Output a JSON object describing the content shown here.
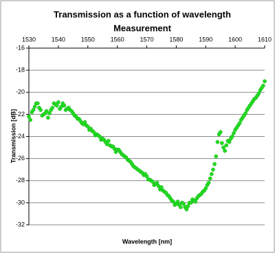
{
  "chart_data": {
    "type": "scatter",
    "title": "Transmission as a function of wavelength",
    "subtitle": "Measurement",
    "x_label": "Wavelength [nm]",
    "y_label": "Transmission [dB]",
    "color": "#22dd22",
    "grid": true,
    "xlim": [
      1530,
      1610
    ],
    "ylim": [
      -32,
      -16
    ],
    "xticks": [
      1530,
      1540,
      1550,
      1560,
      1570,
      1580,
      1590,
      1600,
      1610
    ],
    "yticks": [
      -32,
      -30,
      -28,
      -26,
      -24,
      -22,
      -20,
      -18,
      -16
    ],
    "x": [
      1530,
      1530.5,
      1531,
      1531.5,
      1532,
      1532.5,
      1533,
      1533.5,
      1534,
      1534.5,
      1535,
      1535.5,
      1536,
      1536.5,
      1537,
      1537.5,
      1538,
      1538.5,
      1539,
      1539.5,
      1540,
      1540.5,
      1541,
      1541.5,
      1542,
      1542.5,
      1543,
      1543.5,
      1544,
      1544.5,
      1545,
      1545.5,
      1546,
      1546.5,
      1547,
      1547.5,
      1548,
      1548.5,
      1549,
      1549.5,
      1550,
      1550.5,
      1551,
      1551.5,
      1552,
      1552.5,
      1553,
      1553.5,
      1554,
      1554.5,
      1555,
      1555.5,
      1556,
      1556.5,
      1557,
      1557.5,
      1558,
      1558.5,
      1559,
      1559.5,
      1560,
      1560.5,
      1561,
      1561.5,
      1562,
      1562.5,
      1563,
      1563.5,
      1564,
      1564.5,
      1565,
      1565.5,
      1566,
      1566.5,
      1567,
      1567.5,
      1568,
      1568.5,
      1569,
      1569.5,
      1570,
      1570.5,
      1571,
      1571.5,
      1572,
      1572.5,
      1573,
      1573.5,
      1574,
      1574.5,
      1575,
      1575.5,
      1576,
      1576.5,
      1577,
      1577.5,
      1578,
      1578.5,
      1579,
      1579.5,
      1580,
      1580.5,
      1581,
      1581.5,
      1582,
      1582.5,
      1583,
      1583.5,
      1584,
      1584.5,
      1585,
      1585.5,
      1586,
      1586.5,
      1587,
      1587.5,
      1588,
      1588.5,
      1589,
      1589.5,
      1590,
      1590.5,
      1591,
      1591.5,
      1592,
      1592.5,
      1593,
      1593.5,
      1594,
      1594.5,
      1595,
      1595.5,
      1596,
      1596.5,
      1597,
      1597.5,
      1598,
      1598.5,
      1599,
      1599.5,
      1600,
      1600.5,
      1601,
      1601.5,
      1602,
      1602.5,
      1603,
      1603.5,
      1604,
      1604.5,
      1605,
      1605.5,
      1606,
      1606.5,
      1607,
      1607.5,
      1608,
      1608.5,
      1609,
      1609.5,
      1610
    ],
    "values": [
      -22.2,
      -22.5,
      -21.8,
      -21.6,
      -21.3,
      -21.0,
      -21.0,
      -21.4,
      -21.6,
      -22.1,
      -22.0,
      -21.9,
      -21.7,
      -22.3,
      -21.9,
      -21.6,
      -21.4,
      -21.0,
      -21.1,
      -21.2,
      -20.9,
      -21.5,
      -21.3,
      -21.0,
      -21.2,
      -21.6,
      -21.5,
      -21.4,
      -21.6,
      -21.7,
      -21.9,
      -22.1,
      -22.2,
      -22.4,
      -22.4,
      -22.6,
      -22.8,
      -22.9,
      -22.7,
      -23.0,
      -23.1,
      -23.4,
      -23.3,
      -23.5,
      -23.6,
      -23.9,
      -23.8,
      -23.9,
      -24.0,
      -24.3,
      -24.2,
      -24.3,
      -24.5,
      -24.7,
      -24.4,
      -24.8,
      -24.9,
      -24.9,
      -25.1,
      -25.4,
      -25.2,
      -25.2,
      -25.4,
      -25.6,
      -25.7,
      -25.8,
      -25.9,
      -26.1,
      -26.2,
      -26.3,
      -26.5,
      -26.7,
      -26.8,
      -26.9,
      -27.0,
      -27.1,
      -27.2,
      -27.3,
      -27.5,
      -27.4,
      -27.6,
      -27.9,
      -27.9,
      -28.0,
      -28.1,
      -28.4,
      -28.3,
      -28.2,
      -28.5,
      -28.8,
      -28.6,
      -28.9,
      -29.0,
      -29.1,
      -29.3,
      -29.4,
      -29.6,
      -29.8,
      -29.9,
      -30.2,
      -30.1,
      -29.9,
      -30.2,
      -30.4,
      -30.0,
      -30.1,
      -30.4,
      -30.6,
      -30.3,
      -30.0,
      -30.0,
      -29.7,
      -29.8,
      -29.9,
      -29.6,
      -29.4,
      -29.3,
      -29.2,
      -29.0,
      -28.9,
      -28.7,
      -28.4,
      -28.2,
      -27.8,
      -27.4,
      -27.0,
      -26.5,
      -25.8,
      -24.5,
      -23.8,
      -23.6,
      -24.6,
      -25.0,
      -25.3,
      -24.8,
      -24.4,
      -24.5,
      -24.2,
      -24.0,
      -23.7,
      -23.4,
      -23.2,
      -23.0,
      -22.8,
      -22.5,
      -22.3,
      -22.1,
      -21.9,
      -21.6,
      -21.4,
      -21.2,
      -21.0,
      -20.8,
      -20.6,
      -20.5,
      -20.3,
      -20.1,
      -19.8,
      -19.6,
      -19.4,
      -19.0
    ]
  }
}
